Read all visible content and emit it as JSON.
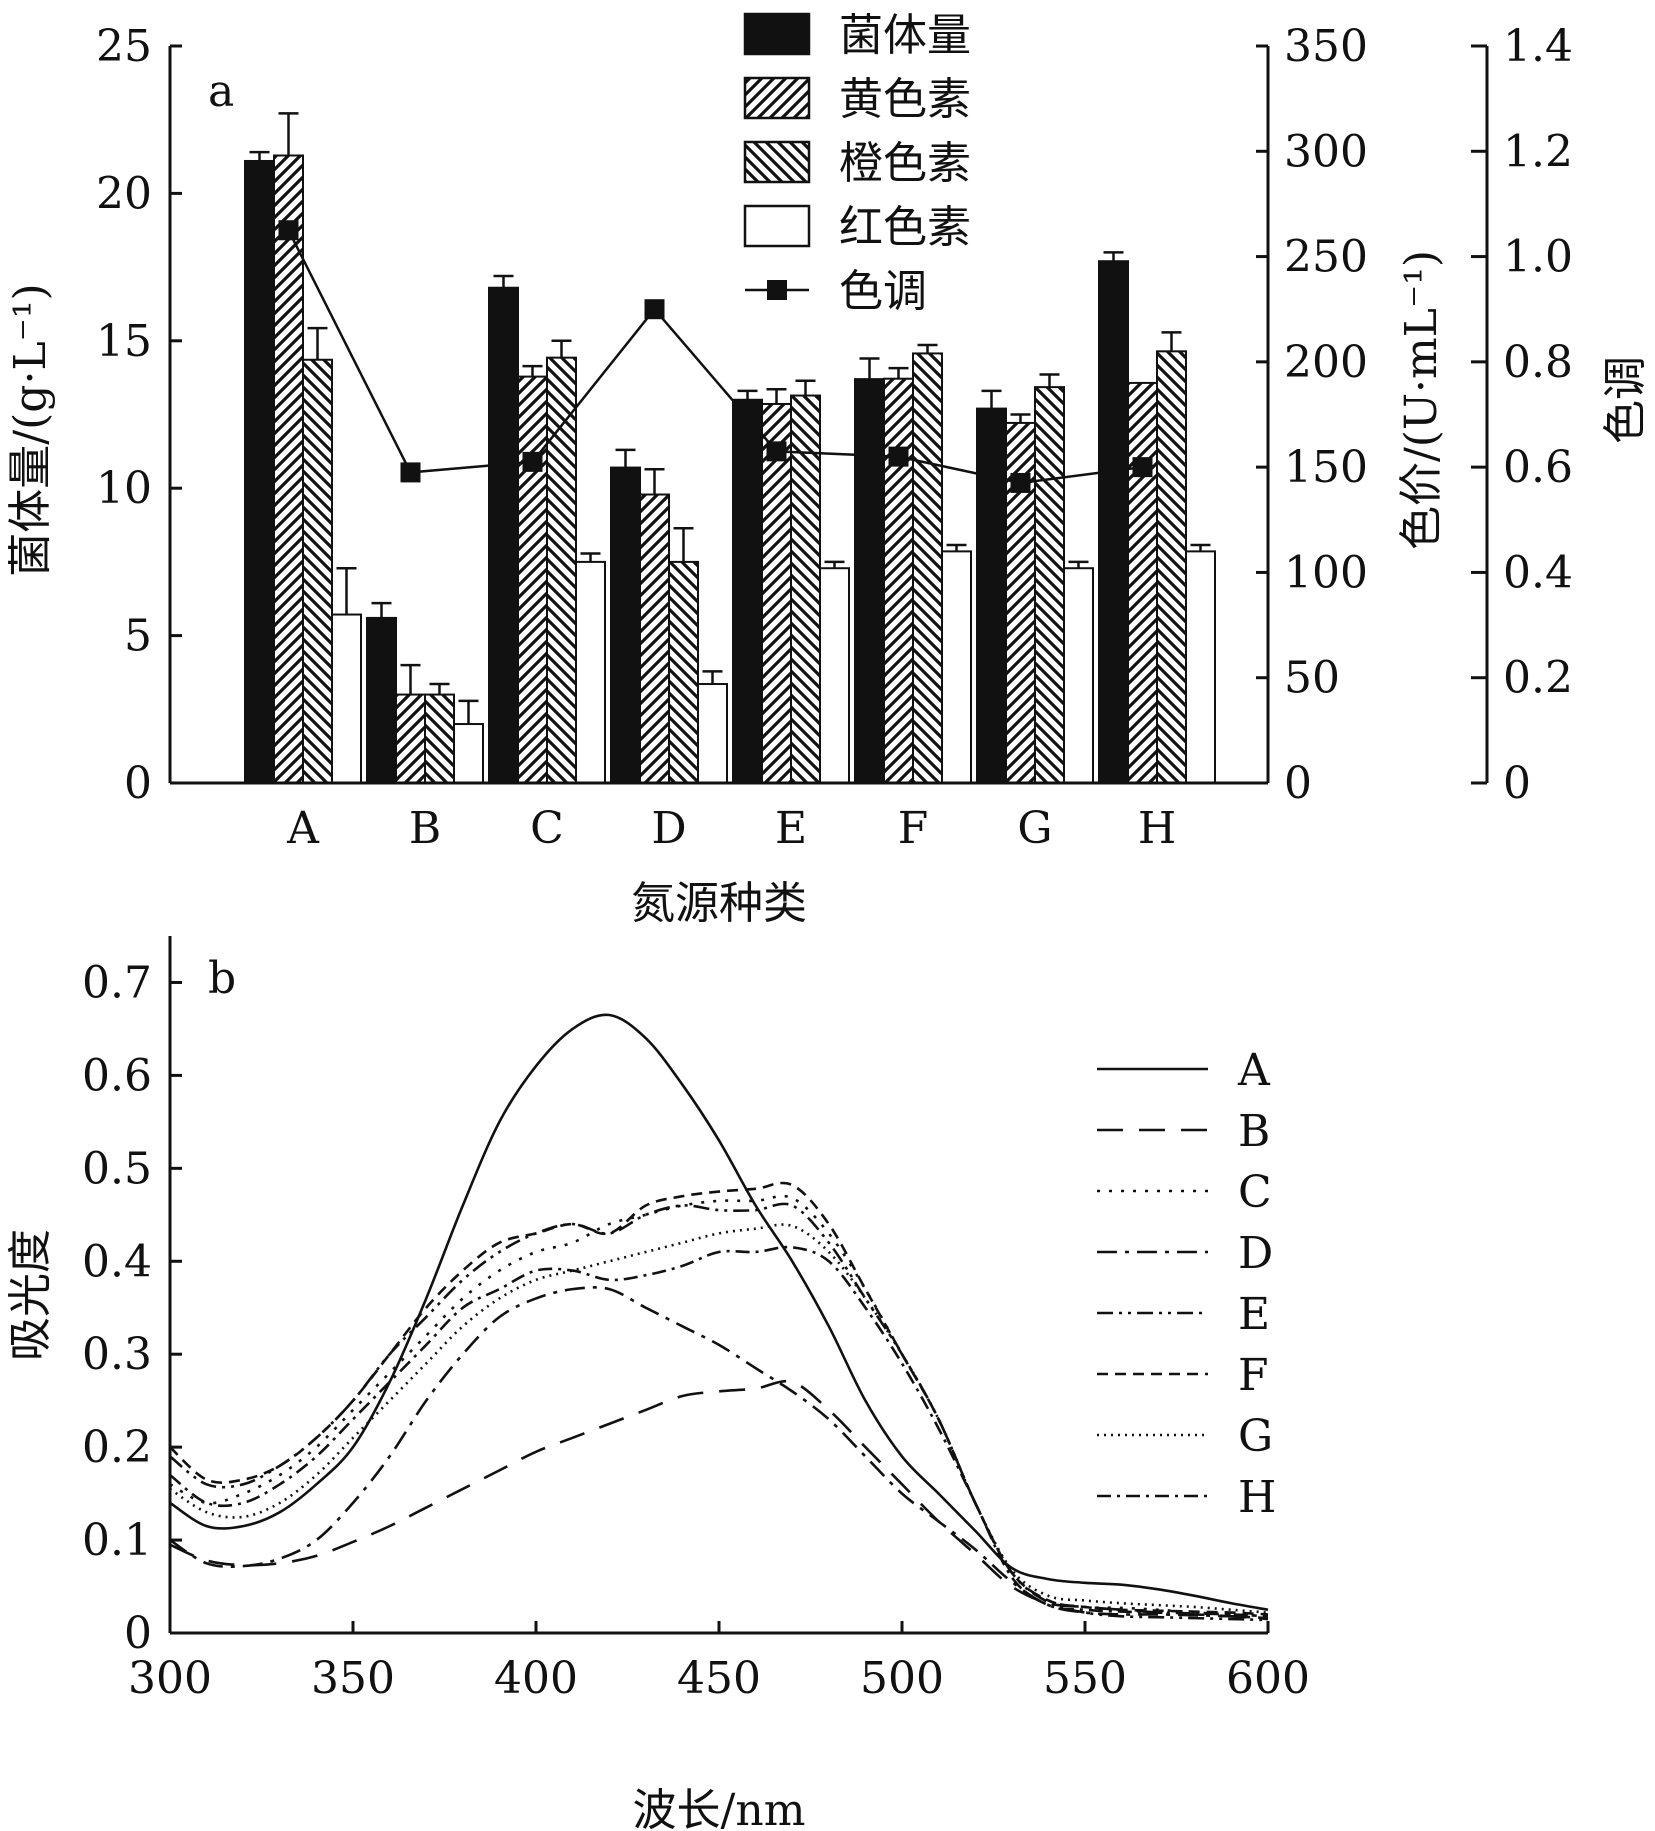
{
  "chart_data": [
    {
      "panel": "a",
      "type": "bar",
      "categories": [
        "A",
        "B",
        "C",
        "D",
        "E",
        "F",
        "G",
        "H"
      ],
      "xlabel": "氮源种类",
      "ylabel_left": "菌体量/(g·L⁻¹)",
      "ylabel_right1": "色价/(U·mL⁻¹)",
      "ylabel_right2": "色调",
      "ylim_left": [
        0,
        25
      ],
      "ylim_right1": [
        0,
        350
      ],
      "ylim_right2": [
        0,
        1.4
      ],
      "yticks_left": [
        "0",
        "5",
        "10",
        "15",
        "20",
        "25"
      ],
      "yticks_right1": [
        "0",
        "50",
        "100",
        "150",
        "200",
        "250",
        "300",
        "350"
      ],
      "yticks_right2": [
        "0",
        "0.2",
        "0.4",
        "0.6",
        "0.8",
        "1.0",
        "1.2",
        "1.4"
      ],
      "legend_position": "top-center",
      "series": [
        {
          "name": "菌体量",
          "axis": "left",
          "pattern": "solid-black",
          "values": [
            21.1,
            5.6,
            16.8,
            10.7,
            13.0,
            13.7,
            12.7,
            17.7
          ],
          "errors": [
            0.3,
            0.5,
            0.4,
            0.6,
            0.3,
            0.7,
            0.6,
            0.3
          ]
        },
        {
          "name": "黄色素",
          "axis": "right1",
          "pattern": "hatch-forward",
          "values": [
            298,
            42,
            193,
            137,
            180,
            192,
            171,
            190
          ],
          "errors": [
            20,
            14,
            5,
            12,
            7,
            5,
            4,
            0
          ]
        },
        {
          "name": "橙色素",
          "axis": "right1",
          "pattern": "hatch-backward",
          "values": [
            201,
            42,
            202,
            105,
            184,
            204,
            188,
            205
          ],
          "errors": [
            15,
            5,
            8,
            16,
            7,
            4,
            6,
            9
          ]
        },
        {
          "name": "红色素",
          "axis": "right1",
          "pattern": "white",
          "values": [
            80,
            28,
            105,
            47,
            102,
            110,
            102,
            110
          ],
          "errors": [
            22,
            11,
            4,
            6,
            3,
            3,
            3,
            3
          ]
        }
      ],
      "line_series": {
        "name": "色调",
        "axis": "right2",
        "values": [
          1.05,
          0.59,
          0.61,
          0.9,
          0.63,
          0.62,
          0.57,
          0.6
        ]
      }
    },
    {
      "panel": "b",
      "type": "line",
      "xlabel": "波长/nm",
      "ylabel": "吸光度",
      "xlim": [
        300,
        600
      ],
      "ylim": [
        0,
        0.75
      ],
      "xticks": [
        "300",
        "350",
        "400",
        "450",
        "500",
        "550",
        "600"
      ],
      "yticks": [
        "0",
        "0.1",
        "0.2",
        "0.3",
        "0.4",
        "0.5",
        "0.6",
        "0.7"
      ],
      "legend_position": "right",
      "x": [
        300,
        310,
        320,
        330,
        340,
        350,
        360,
        370,
        380,
        390,
        400,
        410,
        420,
        430,
        440,
        450,
        460,
        470,
        480,
        490,
        500,
        510,
        520,
        530,
        540,
        550,
        560,
        570,
        580,
        590,
        600
      ],
      "series": [
        {
          "name": "A",
          "dash": "solid",
          "values": [
            0.14,
            0.115,
            0.115,
            0.13,
            0.16,
            0.2,
            0.27,
            0.36,
            0.46,
            0.55,
            0.61,
            0.65,
            0.665,
            0.64,
            0.59,
            0.53,
            0.46,
            0.4,
            0.33,
            0.25,
            0.19,
            0.15,
            0.11,
            0.07,
            0.058,
            0.054,
            0.052,
            0.047,
            0.04,
            0.032,
            0.025
          ]
        },
        {
          "name": "B",
          "dash": "long",
          "values": [
            0.095,
            0.078,
            0.073,
            0.075,
            0.083,
            0.098,
            0.115,
            0.135,
            0.155,
            0.175,
            0.195,
            0.21,
            0.225,
            0.24,
            0.255,
            0.26,
            0.263,
            0.27,
            0.24,
            0.2,
            0.16,
            0.12,
            0.085,
            0.05,
            0.032,
            0.028,
            0.025,
            0.022,
            0.02,
            0.018,
            0.015
          ]
        },
        {
          "name": "C",
          "dash": "dot",
          "values": [
            0.16,
            0.14,
            0.15,
            0.17,
            0.2,
            0.24,
            0.28,
            0.32,
            0.36,
            0.39,
            0.41,
            0.42,
            0.44,
            0.45,
            0.46,
            0.465,
            0.465,
            0.468,
            0.43,
            0.37,
            0.3,
            0.23,
            0.14,
            0.065,
            0.035,
            0.028,
            0.027,
            0.025,
            0.022,
            0.02,
            0.018
          ]
        },
        {
          "name": "D",
          "dash": "dash-dot",
          "values": [
            0.1,
            0.075,
            0.072,
            0.08,
            0.1,
            0.14,
            0.19,
            0.25,
            0.3,
            0.34,
            0.36,
            0.37,
            0.37,
            0.35,
            0.33,
            0.31,
            0.285,
            0.26,
            0.23,
            0.19,
            0.15,
            0.12,
            0.09,
            0.055,
            0.03,
            0.022,
            0.02,
            0.02,
            0.019,
            0.018,
            0.016
          ]
        },
        {
          "name": "E",
          "dash": "dash-dot-dot",
          "values": [
            0.19,
            0.16,
            0.16,
            0.18,
            0.21,
            0.25,
            0.3,
            0.34,
            0.38,
            0.41,
            0.43,
            0.44,
            0.43,
            0.45,
            0.46,
            0.455,
            0.455,
            0.46,
            0.42,
            0.36,
            0.3,
            0.23,
            0.14,
            0.065,
            0.033,
            0.022,
            0.018,
            0.017,
            0.016,
            0.015,
            0.014
          ]
        },
        {
          "name": "F",
          "dash": "short",
          "values": [
            0.2,
            0.165,
            0.165,
            0.18,
            0.21,
            0.25,
            0.3,
            0.35,
            0.39,
            0.42,
            0.43,
            0.44,
            0.43,
            0.46,
            0.47,
            0.475,
            0.478,
            0.482,
            0.44,
            0.37,
            0.3,
            0.23,
            0.14,
            0.065,
            0.035,
            0.028,
            0.025,
            0.024,
            0.023,
            0.022,
            0.02
          ]
        },
        {
          "name": "G",
          "dash": "fine-dot",
          "values": [
            0.155,
            0.13,
            0.125,
            0.14,
            0.17,
            0.21,
            0.25,
            0.29,
            0.33,
            0.36,
            0.38,
            0.39,
            0.4,
            0.41,
            0.42,
            0.43,
            0.435,
            0.438,
            0.41,
            0.36,
            0.3,
            0.23,
            0.14,
            0.068,
            0.04,
            0.035,
            0.032,
            0.03,
            0.028,
            0.025,
            0.022
          ]
        },
        {
          "name": "H",
          "dash": "dash-dot-fine",
          "values": [
            0.17,
            0.14,
            0.14,
            0.16,
            0.19,
            0.23,
            0.27,
            0.31,
            0.35,
            0.37,
            0.39,
            0.39,
            0.38,
            0.385,
            0.395,
            0.41,
            0.41,
            0.415,
            0.4,
            0.35,
            0.29,
            0.22,
            0.14,
            0.06,
            0.03,
            0.025,
            0.023,
            0.022,
            0.021,
            0.02,
            0.018
          ]
        }
      ]
    }
  ]
}
